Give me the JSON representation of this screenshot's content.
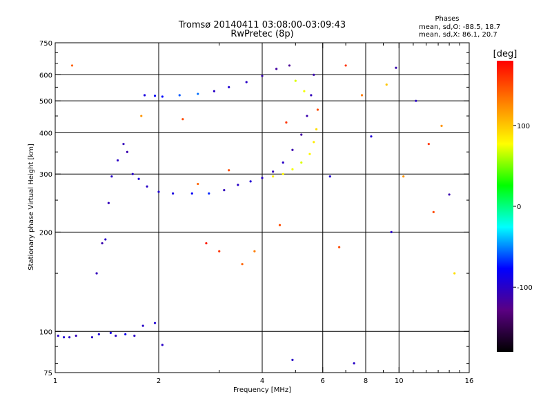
{
  "chart_data": {
    "type": "scatter",
    "title": "Tromsø 20140411 03:08:00-03:09:43",
    "subtitle": "RwPretec (8p)",
    "stats": {
      "heading": "Phases",
      "line1": "mean, sd,O: -88.5, 18.7",
      "line2": "mean, sd,X:  86.1, 20.7"
    },
    "xlabel": "Frequency [MHz]",
    "ylabel": "Stationary phase Virtual Height [km]",
    "x_scale": "log",
    "y_scale": "log",
    "xlim": [
      1,
      16
    ],
    "ylim": [
      75,
      750
    ],
    "x_ticks": [
      {
        "value": 1,
        "label": "1"
      },
      {
        "value": 2,
        "label": "2"
      },
      {
        "value": 4,
        "label": "4"
      },
      {
        "value": 6,
        "label": "6"
      },
      {
        "value": 8,
        "label": "8"
      },
      {
        "value": 10,
        "label": "10"
      },
      {
        "value": 16,
        "label": "16"
      }
    ],
    "y_ticks": [
      {
        "value": 75,
        "label": "75"
      },
      {
        "value": 100,
        "label": "100"
      },
      {
        "value": 200,
        "label": "200"
      },
      {
        "value": 300,
        "label": "300"
      },
      {
        "value": 400,
        "label": "400"
      },
      {
        "value": 500,
        "label": "500"
      },
      {
        "value": 600,
        "label": "600"
      },
      {
        "value": 750,
        "label": "750"
      }
    ],
    "x_grid": [
      2,
      4,
      6,
      8,
      10
    ],
    "y_grid": [
      100,
      200,
      300,
      400,
      500,
      600
    ],
    "grid": true,
    "colorbar": {
      "label": "[deg]",
      "range": [
        -180,
        180
      ],
      "ticks": [
        {
          "value": 100,
          "label": "100"
        },
        {
          "value": 0,
          "label": "0"
        },
        {
          "value": -100,
          "label": "-100"
        }
      ],
      "stops": [
        "#000000",
        "#5a0082",
        "#0000ff",
        "#00ffff",
        "#00ff00",
        "#ffff00",
        "#ff8000",
        "#ff0000"
      ]
    },
    "series": [
      {
        "points": [
          [
            1.02,
            97,
            -100
          ],
          [
            1.06,
            96,
            -95
          ],
          [
            1.1,
            96,
            -100
          ],
          [
            1.15,
            97,
            -105
          ],
          [
            1.28,
            96,
            -100
          ],
          [
            1.34,
            98,
            -95
          ],
          [
            1.45,
            99,
            -90
          ],
          [
            1.5,
            97,
            -100
          ],
          [
            1.6,
            98,
            -85
          ],
          [
            1.7,
            97,
            -100
          ],
          [
            1.8,
            104,
            -100
          ],
          [
            1.95,
            106,
            -95
          ]
        ]
      },
      {
        "points": [
          [
            1.32,
            150,
            -105
          ],
          [
            1.37,
            185,
            -110
          ],
          [
            1.4,
            190,
            -100
          ],
          [
            1.43,
            245,
            -105
          ],
          [
            1.46,
            295,
            -100
          ],
          [
            1.52,
            330,
            -100
          ],
          [
            1.58,
            370,
            -105
          ],
          [
            1.62,
            350,
            -110
          ],
          [
            1.68,
            300,
            -100
          ],
          [
            1.75,
            290,
            -95
          ],
          [
            1.85,
            275,
            -100
          ],
          [
            2.0,
            265,
            -95
          ],
          [
            2.2,
            262,
            -90
          ],
          [
            2.5,
            262,
            -80
          ],
          [
            2.8,
            262,
            -70
          ],
          [
            3.1,
            268,
            -105
          ],
          [
            3.4,
            278,
            -100
          ],
          [
            3.7,
            285,
            -95
          ],
          [
            4.0,
            292,
            -100
          ],
          [
            4.3,
            305,
            -105
          ],
          [
            4.6,
            325,
            -100
          ],
          [
            4.9,
            355,
            -110
          ],
          [
            5.2,
            395,
            -115
          ],
          [
            5.4,
            450,
            -110
          ],
          [
            5.55,
            520,
            -105
          ],
          [
            5.65,
            600,
            -110
          ]
        ]
      },
      {
        "points": [
          [
            1.82,
            520,
            -90
          ],
          [
            1.95,
            518,
            -80
          ],
          [
            2.05,
            515,
            -75
          ],
          [
            2.3,
            520,
            -60
          ],
          [
            2.6,
            525,
            -55
          ],
          [
            2.9,
            535,
            -100
          ],
          [
            3.2,
            550,
            -95
          ],
          [
            3.6,
            570,
            -100
          ],
          [
            4.0,
            595,
            -110
          ],
          [
            4.4,
            625,
            -115
          ],
          [
            4.8,
            640,
            -120
          ]
        ]
      },
      {
        "points": [
          [
            4.3,
            295,
            85
          ],
          [
            4.6,
            300,
            80
          ],
          [
            4.9,
            310,
            75
          ],
          [
            5.2,
            325,
            70
          ],
          [
            5.5,
            345,
            80
          ],
          [
            5.65,
            375,
            85
          ],
          [
            5.75,
            410,
            90
          ],
          [
            5.3,
            535,
            75
          ],
          [
            5.0,
            575,
            70
          ]
        ]
      },
      {
        "points": [
          [
            1.12,
            640,
            140
          ],
          [
            1.78,
            450,
            120
          ],
          [
            2.35,
            440,
            150
          ],
          [
            2.6,
            280,
            140
          ],
          [
            2.75,
            185,
            170
          ],
          [
            3.0,
            175,
            160
          ],
          [
            3.2,
            308,
            150
          ],
          [
            3.5,
            160,
            140
          ],
          [
            3.8,
            175,
            130
          ],
          [
            4.5,
            210,
            150
          ],
          [
            4.7,
            430,
            160
          ],
          [
            5.8,
            470,
            150
          ],
          [
            6.3,
            295,
            -95
          ],
          [
            6.7,
            180,
            150
          ],
          [
            7.0,
            640,
            160
          ],
          [
            7.4,
            80,
            -100
          ],
          [
            7.8,
            520,
            130
          ],
          [
            8.3,
            390,
            -95
          ],
          [
            9.2,
            560,
            100
          ],
          [
            9.5,
            200,
            -100
          ],
          [
            9.8,
            630,
            -110
          ],
          [
            10.3,
            295,
            120
          ],
          [
            11.2,
            500,
            -100
          ],
          [
            12.2,
            370,
            160
          ],
          [
            12.6,
            230,
            150
          ],
          [
            13.3,
            420,
            120
          ],
          [
            14.0,
            260,
            -110
          ],
          [
            14.5,
            150,
            90
          ],
          [
            4.9,
            82,
            -100
          ],
          [
            2.05,
            91,
            -100
          ]
        ]
      }
    ]
  }
}
